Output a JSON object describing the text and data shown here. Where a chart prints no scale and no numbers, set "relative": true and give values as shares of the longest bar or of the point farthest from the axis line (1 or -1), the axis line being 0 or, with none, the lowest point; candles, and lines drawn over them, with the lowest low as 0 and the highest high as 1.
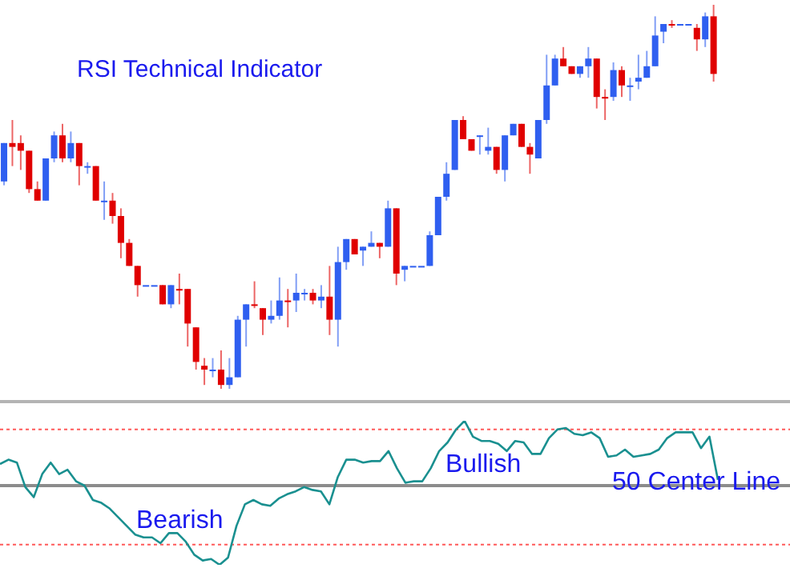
{
  "chart_data": [
    {
      "type": "candlestick",
      "title": "RSI Technical Indicator",
      "relative": true,
      "categories": [
        null,
        null,
        null,
        null,
        null,
        null,
        null,
        null,
        null,
        null,
        null,
        null,
        null,
        null,
        null,
        null,
        null,
        null,
        null,
        null,
        null,
        null,
        null,
        null,
        null,
        null,
        null,
        null,
        null,
        null,
        null,
        null,
        null,
        null,
        null,
        null,
        null,
        null,
        null,
        null,
        null,
        null,
        null,
        null,
        null,
        null,
        null,
        null,
        null,
        null,
        null,
        null,
        null,
        null,
        null,
        null,
        null,
        null,
        null,
        null,
        null,
        null,
        null,
        null,
        null,
        null,
        null,
        null,
        null,
        null,
        null,
        null,
        null,
        null,
        null,
        null,
        null,
        null,
        null,
        null,
        null,
        null,
        null,
        null,
        null,
        null
      ],
      "ohlc": [
        [
          0.54,
          0.64,
          0.53,
          0.64
        ],
        [
          0.64,
          0.7,
          0.58,
          0.63
        ],
        [
          0.64,
          0.66,
          0.57,
          0.62
        ],
        [
          0.62,
          0.62,
          0.51,
          0.52
        ],
        [
          0.52,
          0.54,
          0.49,
          0.49
        ],
        [
          0.49,
          0.6,
          0.49,
          0.6
        ],
        [
          0.6,
          0.67,
          0.59,
          0.66
        ],
        [
          0.66,
          0.69,
          0.59,
          0.6
        ],
        [
          0.6,
          0.67,
          0.59,
          0.64
        ],
        [
          0.64,
          0.64,
          0.53,
          0.58
        ],
        [
          0.58,
          0.59,
          0.56,
          0.58
        ],
        [
          0.58,
          0.58,
          0.49,
          0.49
        ],
        [
          0.49,
          0.54,
          0.44,
          0.49
        ],
        [
          0.49,
          0.51,
          0.43,
          0.45
        ],
        [
          0.45,
          0.47,
          0.34,
          0.38
        ],
        [
          0.38,
          0.39,
          0.32,
          0.32
        ],
        [
          0.32,
          0.32,
          0.24,
          0.27
        ],
        [
          0.27,
          0.27,
          0.27,
          0.27
        ],
        [
          0.27,
          0.27,
          0.27,
          0.27
        ],
        [
          0.27,
          0.27,
          0.22,
          0.22
        ],
        [
          0.22,
          0.27,
          0.21,
          0.27
        ],
        [
          0.26,
          0.3,
          0.22,
          0.26
        ],
        [
          0.26,
          0.26,
          0.11,
          0.17
        ],
        [
          0.16,
          0.16,
          0.05,
          0.07
        ],
        [
          0.06,
          0.08,
          0.01,
          0.05
        ],
        [
          0.05,
          0.08,
          0.03,
          0.05
        ],
        [
          0.05,
          0.1,
          0.0,
          0.01
        ],
        [
          0.01,
          0.08,
          0.0,
          0.03
        ],
        [
          0.03,
          0.19,
          0.03,
          0.18
        ],
        [
          0.18,
          0.22,
          0.11,
          0.22
        ],
        [
          0.22,
          0.28,
          0.21,
          0.22
        ],
        [
          0.21,
          0.21,
          0.14,
          0.18
        ],
        [
          0.18,
          0.23,
          0.17,
          0.19
        ],
        [
          0.19,
          0.29,
          0.18,
          0.23
        ],
        [
          0.23,
          0.26,
          0.16,
          0.23
        ],
        [
          0.23,
          0.3,
          0.2,
          0.25
        ],
        [
          0.25,
          0.26,
          0.23,
          0.25
        ],
        [
          0.25,
          0.26,
          0.22,
          0.23
        ],
        [
          0.23,
          0.27,
          0.21,
          0.24
        ],
        [
          0.24,
          0.32,
          0.14,
          0.18
        ],
        [
          0.18,
          0.37,
          0.11,
          0.33
        ],
        [
          0.33,
          0.39,
          0.31,
          0.39
        ],
        [
          0.39,
          0.39,
          0.35,
          0.35
        ],
        [
          0.36,
          0.37,
          0.32,
          0.37
        ],
        [
          0.37,
          0.41,
          0.37,
          0.38
        ],
        [
          0.38,
          0.38,
          0.34,
          0.37
        ],
        [
          0.37,
          0.49,
          0.37,
          0.47
        ],
        [
          0.47,
          0.47,
          0.27,
          0.3
        ],
        [
          0.31,
          0.32,
          0.28,
          0.32
        ],
        [
          0.32,
          0.32,
          0.32,
          0.32
        ],
        [
          0.32,
          0.32,
          0.32,
          0.32
        ],
        [
          0.32,
          0.41,
          0.32,
          0.4
        ],
        [
          0.4,
          0.5,
          0.4,
          0.5
        ],
        [
          0.5,
          0.59,
          0.49,
          0.56
        ],
        [
          0.57,
          0.7,
          0.57,
          0.7
        ],
        [
          0.7,
          0.71,
          0.65,
          0.65
        ],
        [
          0.65,
          0.65,
          0.62,
          0.62
        ],
        [
          0.66,
          0.66,
          0.61,
          0.66
        ],
        [
          0.62,
          0.68,
          0.61,
          0.63
        ],
        [
          0.63,
          0.63,
          0.56,
          0.57
        ],
        [
          0.57,
          0.66,
          0.54,
          0.66
        ],
        [
          0.66,
          0.69,
          0.66,
          0.69
        ],
        [
          0.69,
          0.69,
          0.63,
          0.63
        ],
        [
          0.63,
          0.64,
          0.56,
          0.61
        ],
        [
          0.6,
          0.7,
          0.6,
          0.7
        ],
        [
          0.7,
          0.87,
          0.69,
          0.79
        ],
        [
          0.79,
          0.87,
          0.79,
          0.86
        ],
        [
          0.86,
          0.89,
          0.84,
          0.84
        ],
        [
          0.84,
          0.84,
          0.82,
          0.82
        ],
        [
          0.82,
          0.84,
          0.81,
          0.84
        ],
        [
          0.84,
          0.89,
          0.81,
          0.86
        ],
        [
          0.86,
          0.86,
          0.73,
          0.76
        ],
        [
          0.76,
          0.78,
          0.7,
          0.76
        ],
        [
          0.76,
          0.85,
          0.75,
          0.83
        ],
        [
          0.83,
          0.84,
          0.76,
          0.79
        ],
        [
          0.79,
          0.81,
          0.75,
          0.79
        ],
        [
          0.8,
          0.87,
          0.78,
          0.81
        ],
        [
          0.81,
          0.88,
          0.81,
          0.84
        ],
        [
          0.84,
          0.97,
          0.84,
          0.92
        ],
        [
          0.93,
          0.95,
          0.9,
          0.95
        ],
        [
          0.95,
          0.96,
          0.94,
          0.95
        ],
        [
          0.95,
          0.95,
          0.95,
          0.95
        ],
        [
          0.95,
          0.95,
          0.95,
          0.95
        ],
        [
          0.94,
          0.95,
          0.88,
          0.91
        ],
        [
          0.91,
          0.98,
          0.89,
          0.97
        ],
        [
          0.97,
          1.0,
          0.8,
          0.82
        ]
      ],
      "colors": [
        "#2f5ff0",
        "#e00000",
        "#e00000",
        "#e00000",
        "#e00000",
        "#2f5ff0",
        "#2f5ff0",
        "#e00000",
        "#2f5ff0",
        "#e00000",
        "#2f5ff0",
        "#e00000",
        "#2f5ff0",
        "#e00000",
        "#e00000",
        "#e00000",
        "#e00000",
        "#2f5ff0",
        "#2f5ff0",
        "#e00000",
        "#2f5ff0",
        "#e00000",
        "#e00000",
        "#e00000",
        "#e00000",
        "#2f5ff0",
        "#e00000",
        "#2f5ff0",
        "#2f5ff0",
        "#2f5ff0",
        "#e00000",
        "#e00000",
        "#2f5ff0",
        "#2f5ff0",
        "#e00000",
        "#2f5ff0",
        "#2f5ff0",
        "#e00000",
        "#2f5ff0",
        "#e00000",
        "#2f5ff0",
        "#2f5ff0",
        "#e00000",
        "#2f5ff0",
        "#2f5ff0",
        "#e00000",
        "#2f5ff0",
        "#e00000",
        "#2f5ff0",
        "#2f5ff0",
        "#2f5ff0",
        "#2f5ff0",
        "#2f5ff0",
        "#2f5ff0",
        "#2f5ff0",
        "#e00000",
        "#e00000",
        "#2f5ff0",
        "#2f5ff0",
        "#e00000",
        "#2f5ff0",
        "#2f5ff0",
        "#e00000",
        "#e00000",
        "#2f5ff0",
        "#2f5ff0",
        "#2f5ff0",
        "#e00000",
        "#e00000",
        "#2f5ff0",
        "#2f5ff0",
        "#e00000",
        "#e00000",
        "#2f5ff0",
        "#e00000",
        "#2f5ff0",
        "#2f5ff0",
        "#2f5ff0",
        "#2f5ff0",
        "#2f5ff0",
        "#e00000",
        "#2f5ff0",
        "#2f5ff0",
        "#e00000",
        "#2f5ff0",
        "#e00000"
      ]
    },
    {
      "type": "line",
      "relative": true,
      "categories": [
        null,
        null,
        null,
        null,
        null,
        null,
        null,
        null,
        null,
        null,
        null,
        null,
        null,
        null,
        null,
        null,
        null,
        null,
        null,
        null,
        null,
        null,
        null,
        null,
        null,
        null,
        null,
        null,
        null,
        null,
        null,
        null,
        null,
        null,
        null,
        null,
        null,
        null,
        null,
        null,
        null,
        null,
        null,
        null,
        null,
        null,
        null,
        null,
        null,
        null,
        null,
        null,
        null,
        null,
        null,
        null,
        null,
        null,
        null,
        null,
        null,
        null,
        null,
        null,
        null,
        null,
        null,
        null,
        null,
        null,
        null,
        null,
        null,
        null,
        null,
        null,
        null,
        null,
        null,
        null,
        null,
        null,
        null,
        null,
        null,
        null
      ],
      "series": [
        {
          "color": "#1a9090",
          "values": [
            0.7,
            0.73,
            0.71,
            0.54,
            0.47,
            0.63,
            0.71,
            0.63,
            0.66,
            0.58,
            0.55,
            0.45,
            0.43,
            0.39,
            0.33,
            0.27,
            0.21,
            0.19,
            0.19,
            0.15,
            0.22,
            0.22,
            0.16,
            0.07,
            0.03,
            0.04,
            0.0,
            0.05,
            0.27,
            0.42,
            0.45,
            0.42,
            0.41,
            0.46,
            0.49,
            0.51,
            0.54,
            0.52,
            0.51,
            0.42,
            0.61,
            0.73,
            0.73,
            0.71,
            0.72,
            0.72,
            0.79,
            0.67,
            0.57,
            0.58,
            0.58,
            0.67,
            0.79,
            0.85,
            0.94,
            1.0,
            0.89,
            0.86,
            0.86,
            0.84,
            0.79,
            0.86,
            0.85,
            0.77,
            0.77,
            0.88,
            0.94,
            0.95,
            0.91,
            0.9,
            0.92,
            0.88,
            0.75,
            0.76,
            0.8,
            0.75,
            0.76,
            0.77,
            0.8,
            0.88,
            0.92,
            0.92,
            0.92,
            0.81,
            0.89,
            0.59
          ]
        }
      ],
      "ref_lines": [
        {
          "axis": "y",
          "value": 0.94,
          "color": "#ff5a5a",
          "line_style": "dotted"
        },
        {
          "axis": "y",
          "value": 0.55,
          "label": "50 Center Line",
          "color": "#8c8c8c",
          "line_style": "solid"
        },
        {
          "axis": "y",
          "value": 0.14,
          "color": "#ff5a5a",
          "line_style": "dotted"
        }
      ],
      "annotations": [
        "Bullish",
        "Bearish"
      ]
    }
  ]
}
